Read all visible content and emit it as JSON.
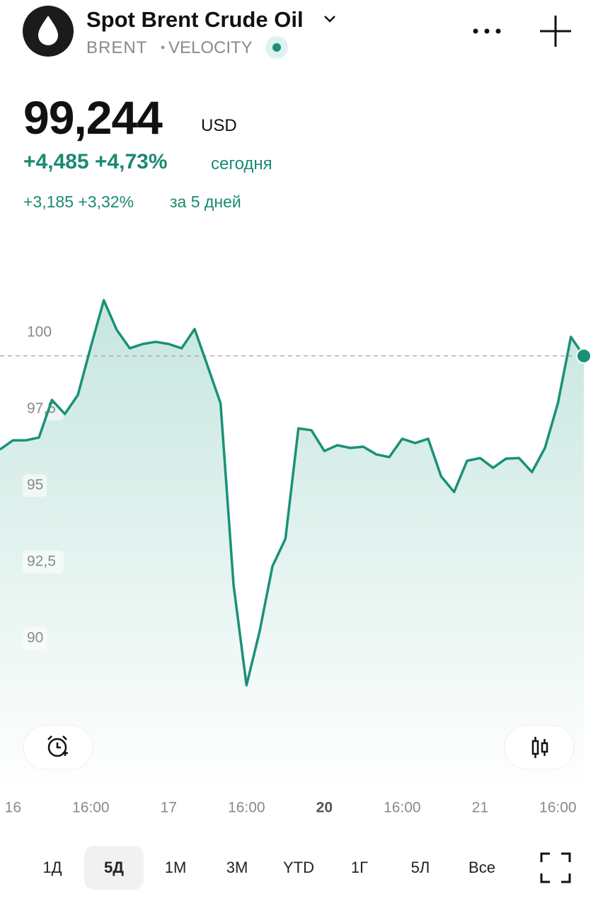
{
  "header": {
    "title": "Spot Brent Crude Oil",
    "exchange": "BRENT",
    "source": "VELOCITY"
  },
  "quote": {
    "price": "99,244",
    "currency": "USD",
    "change_today": "+4,485 +4,73%",
    "today_label": "сегодня",
    "change_5d": "+3,185 +3,32%",
    "period_label": "за 5 дней"
  },
  "chart_data": {
    "type": "area",
    "color": "#1a9177",
    "categories": [
      null,
      "16",
      null,
      null,
      null,
      null,
      null,
      "16:00",
      null,
      null,
      null,
      null,
      null,
      "17",
      null,
      null,
      null,
      null,
      null,
      "16:00",
      null,
      null,
      null,
      null,
      null,
      "20",
      null,
      null,
      null,
      null,
      null,
      "16:00",
      null,
      null,
      null,
      null,
      null,
      "21",
      null,
      null,
      null,
      null,
      null,
      "16:00",
      null,
      null
    ],
    "values": [
      96.18,
      96.48,
      96.48,
      96.57,
      97.8,
      97.34,
      97.96,
      99.54,
      101.06,
      100.09,
      99.49,
      99.63,
      99.7,
      99.63,
      99.49,
      100.12,
      98.91,
      97.69,
      91.76,
      88.47,
      90.21,
      92.36,
      93.26,
      96.87,
      96.81,
      96.13,
      96.32,
      96.23,
      96.27,
      96.02,
      95.93,
      96.53,
      96.39,
      96.53,
      95.3,
      94.79,
      95.81,
      95.9,
      95.58,
      95.88,
      95.9,
      95.44,
      96.23,
      97.69,
      99.86,
      99.24
    ],
    "ylim": [
      85,
      103.5
    ],
    "yticks": [
      {
        "value": 90,
        "label": "90"
      },
      {
        "value": 92.5,
        "label": "92,5"
      },
      {
        "value": 95,
        "label": "95"
      },
      {
        "value": 97.5,
        "label": "97,5"
      },
      {
        "value": 100,
        "label": "100"
      }
    ]
  },
  "ranges": [
    "1Д",
    "5Д",
    "1М",
    "3М",
    "YTD",
    "1Г",
    "5Л",
    "Все"
  ]
}
